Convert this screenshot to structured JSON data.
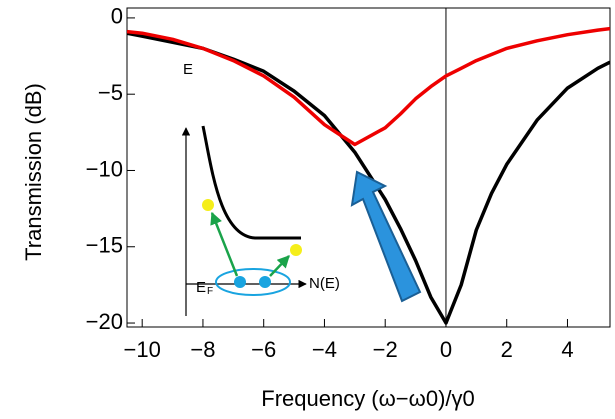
{
  "chart_data": {
    "type": "line",
    "ylabel": "Transmission (dB)",
    "xlabel": "Frequency (ω−ω0)/γ0",
    "x": [
      -10.5,
      -10,
      -9,
      -8,
      -7,
      -6,
      -5,
      -4,
      -3,
      -2,
      -1.5,
      -1,
      -0.5,
      0,
      0.5,
      1,
      1.5,
      2,
      3,
      4,
      5,
      5.4
    ],
    "series": [
      {
        "color": "#000000",
        "values": [
          -1.0,
          -1.2,
          -1.6,
          -2.0,
          -2.7,
          -3.5,
          -4.8,
          -6.4,
          -8.8,
          -11.9,
          -13.8,
          -15.9,
          -18.3,
          -20,
          -17.5,
          -13.9,
          -11.5,
          -9.6,
          -6.7,
          -4.6,
          -3.3,
          -2.9
        ]
      },
      {
        "color": "#ee0000",
        "values": [
          -0.9,
          -1.0,
          -1.4,
          -2.0,
          -2.8,
          -3.8,
          -5.2,
          -7.0,
          -8.3,
          -7.2,
          -6.3,
          -5.3,
          -4.5,
          -3.8,
          -3.3,
          -2.8,
          -2.4,
          -2.0,
          -1.5,
          -1.1,
          -0.8,
          -0.7
        ]
      }
    ],
    "xlim": [
      -10.5,
      5.4
    ],
    "ylim": [
      -20.26,
      0.65
    ],
    "xticks": [
      {
        "value": -10,
        "label": "−10"
      },
      {
        "value": -8,
        "label": "−8"
      },
      {
        "value": -6,
        "label": "−6"
      },
      {
        "value": -4,
        "label": "−4"
      },
      {
        "value": -2,
        "label": "−2"
      },
      0,
      2,
      4
    ],
    "yticks": [
      0,
      {
        "value": -5,
        "label": "−5"
      },
      {
        "value": -10,
        "label": "−10"
      },
      {
        "value": -15,
        "label": "−15"
      },
      {
        "value": -20,
        "label": "−20"
      }
    ],
    "vline": 0,
    "inset": {
      "e_label": "E",
      "ef_label": "E",
      "ef_sub": "F",
      "ne_label": "N(E)"
    }
  }
}
